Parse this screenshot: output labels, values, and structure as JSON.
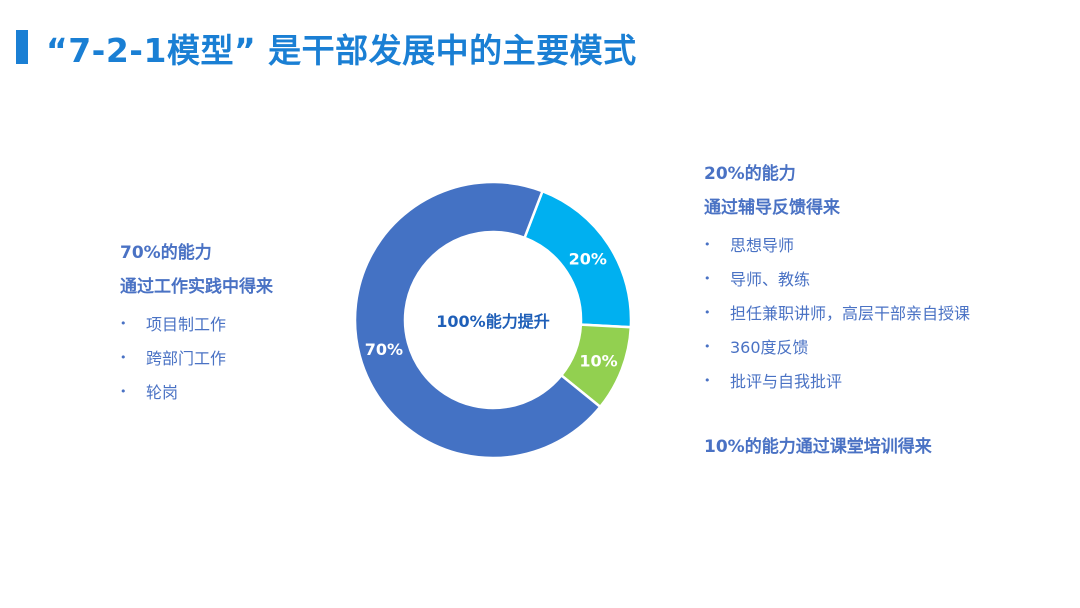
{
  "title": "“7-2-1模型” 是干部发展中的主要模式",
  "left_block": {
    "line1": "70%的能力",
    "line2": "通过工作实践中得来",
    "bullets": [
      "项目制工作",
      "跨部门工作",
      "轮岗"
    ]
  },
  "right_block": {
    "line1": "20%的能力",
    "line2": "通过辅导反馈得来",
    "bullets": [
      "思想导师",
      "导师、教练",
      "担任兼职讲师，高层干部亲自授课",
      "360度反馈",
      "批评与自我批评"
    ]
  },
  "bottom_note": "10%的能力通过课堂培训得来",
  "bullet_glyph": "•",
  "colors": {
    "accent": "#1a7fd4",
    "text": "#4a72c4",
    "slice_70": "#4472c4",
    "slice_20": "#00b0f0",
    "slice_10": "#92d050"
  },
  "chart_data": {
    "type": "pie",
    "variant": "donut",
    "center_label": "100%能力提升",
    "start_angle_deg": 21,
    "slices": [
      {
        "label": "20%",
        "value": 20,
        "color": "#00b0f0"
      },
      {
        "label": "10%",
        "value": 10,
        "color": "#92d050"
      },
      {
        "label": "70%",
        "value": 70,
        "color": "#4472c4"
      }
    ]
  }
}
